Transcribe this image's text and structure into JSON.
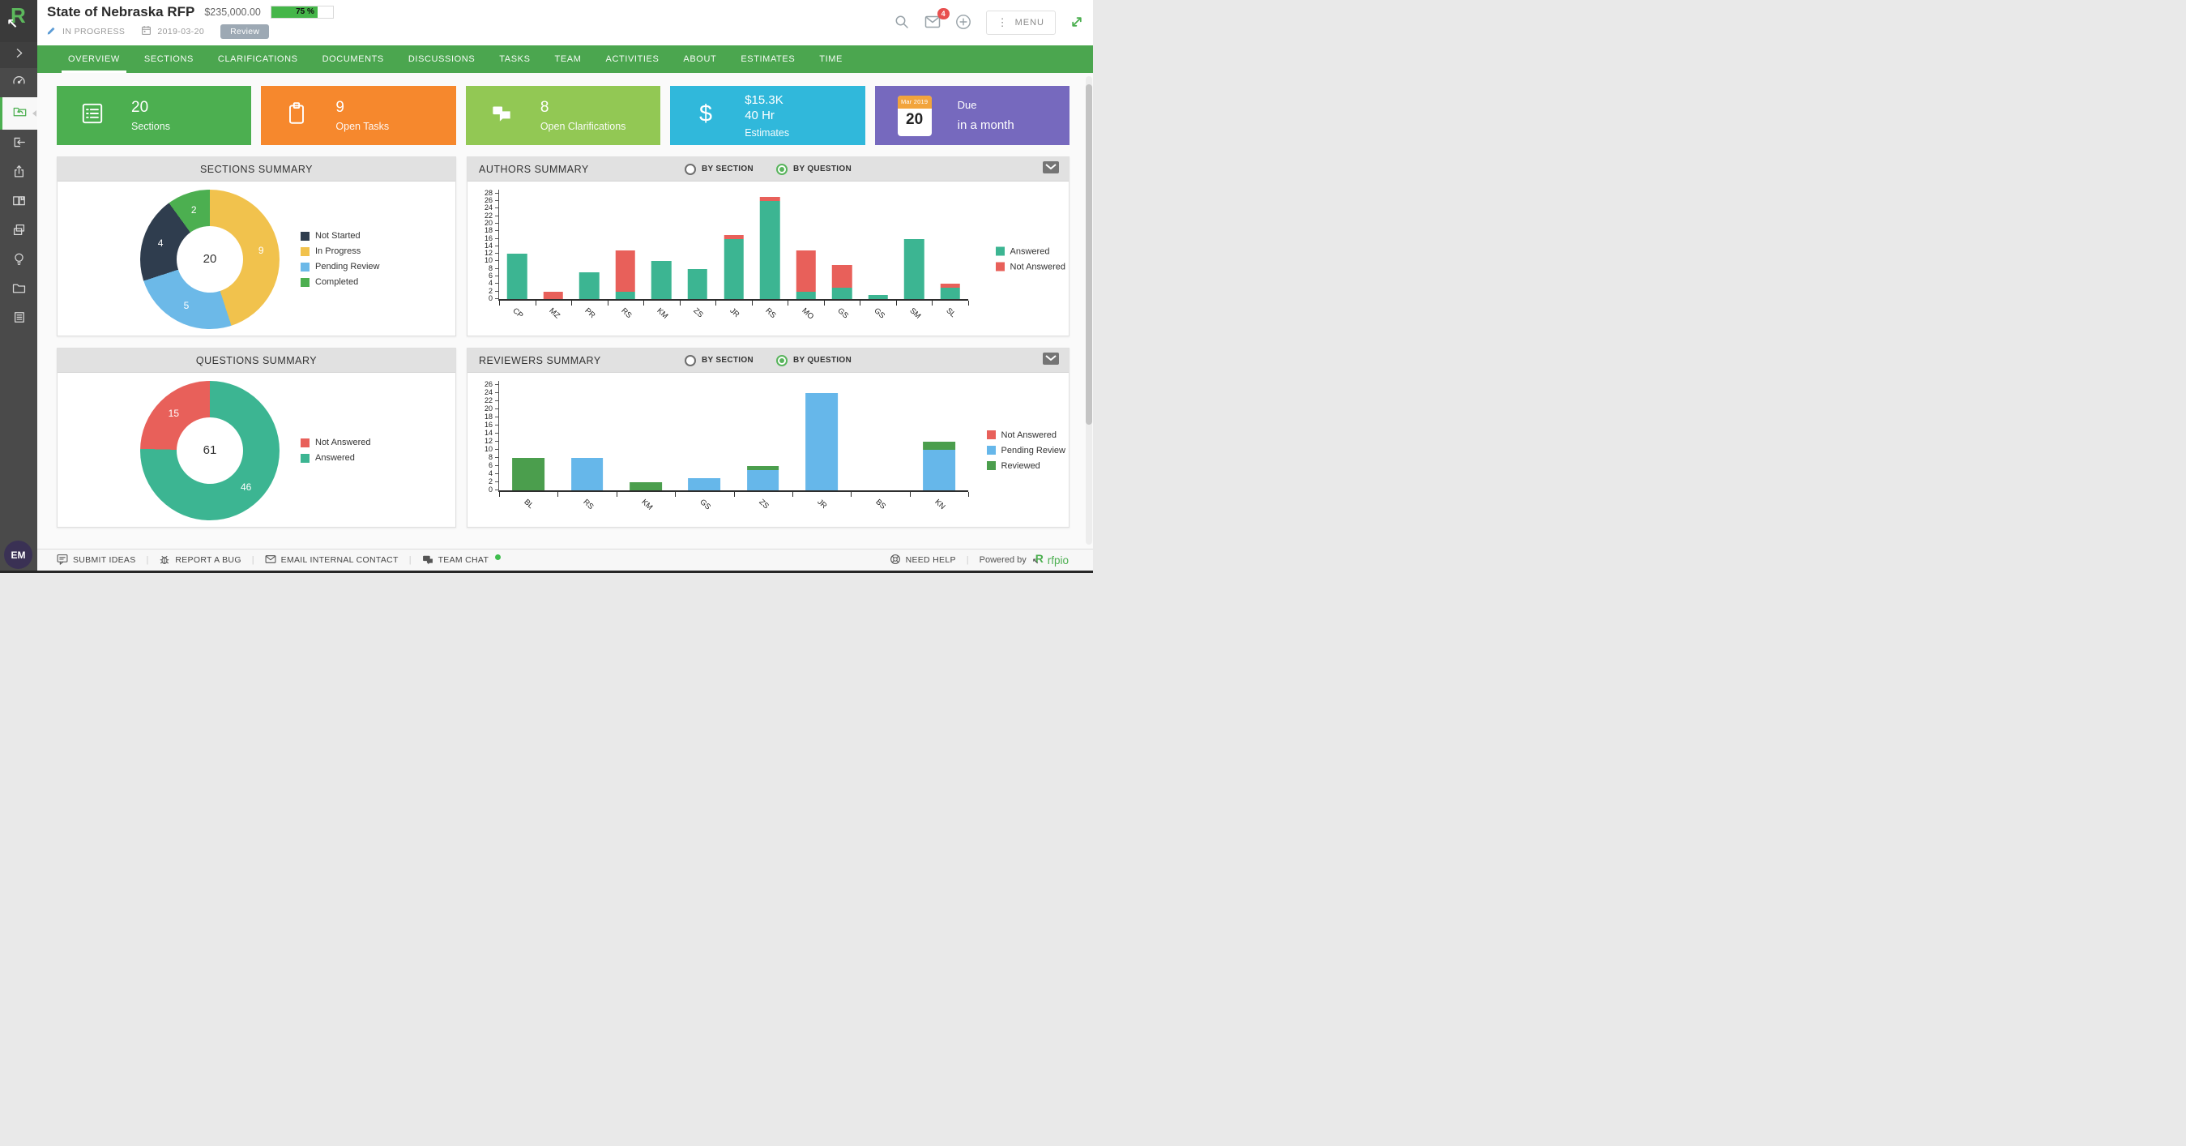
{
  "header": {
    "title": "State of Nebraska RFP",
    "amount": "$235,000.00",
    "progress_percent": 75,
    "progress_label": "75 %",
    "status": "IN PROGRESS",
    "date": "2019-03-20",
    "stage_badge": "Review",
    "mail_badge_count": "4",
    "menu_label": "MENU"
  },
  "nav": {
    "active_tab": "OVERVIEW",
    "tabs": [
      "OVERVIEW",
      "SECTIONS",
      "CLARIFICATIONS",
      "DOCUMENTS",
      "DISCUSSIONS",
      "TASKS",
      "TEAM",
      "ACTIVITIES",
      "ABOUT",
      "ESTIMATES",
      "TIME"
    ]
  },
  "sidebar": {
    "items": [
      {
        "icon": "collapse-chevron-icon",
        "variant": "dark"
      },
      {
        "icon": "dashboard-icon"
      },
      {
        "icon": "projects-icon",
        "active": true
      },
      {
        "icon": "intake-icon"
      },
      {
        "icon": "export-icon"
      },
      {
        "icon": "content-library-icon"
      },
      {
        "icon": "duplicate-icon"
      },
      {
        "icon": "insights-icon"
      },
      {
        "icon": "files-icon"
      },
      {
        "icon": "reports-icon"
      }
    ]
  },
  "stat_cards": [
    {
      "icon": "list-icon",
      "color": "#4CAF50",
      "value": "20",
      "label": "Sections"
    },
    {
      "icon": "clipboard-icon",
      "color": "#F6882D",
      "value": "9",
      "label": "Open Tasks"
    },
    {
      "icon": "chat-bubbles-icon",
      "color": "#92C854",
      "value": "8",
      "label": "Open Clarifications"
    },
    {
      "icon": "dollar-icon",
      "color": "#30B8DB",
      "value": "$15.3K",
      "value2": "40 Hr",
      "label": "Estimates"
    },
    {
      "type": "calendar",
      "color": "#7669BE",
      "calendar_month": "Mar 2019",
      "calendar_day": "20",
      "calendar_header_color": "#F2A43C",
      "line1": "Due",
      "line2": "in a month"
    }
  ],
  "panels": {
    "authors": {
      "radio_options": [
        "BY SECTION",
        "BY QUESTION"
      ],
      "radio_selected": "BY QUESTION"
    },
    "reviewers": {
      "radio_options": [
        "BY SECTION",
        "BY QUESTION"
      ],
      "radio_selected": "BY QUESTION"
    }
  },
  "chart_data": [
    {
      "type": "donut",
      "title": "SECTIONS SUMMARY",
      "total_label": "20",
      "segments": [
        {
          "label": "In Progress",
          "value": 9,
          "color": "#F1C24D"
        },
        {
          "label": "Pending Review",
          "value": 5,
          "color": "#6CB9E8"
        },
        {
          "label": "Not Started",
          "value": 4,
          "color": "#2F3D4E"
        },
        {
          "label": "Completed",
          "value": 2,
          "color": "#4CAF50"
        }
      ],
      "legend": [
        {
          "label": "Not Started",
          "color": "#2F3D4E"
        },
        {
          "label": "In Progress",
          "color": "#F1C24D"
        },
        {
          "label": "Pending Review",
          "color": "#6CB9E8"
        },
        {
          "label": "Completed",
          "color": "#4CAF50"
        }
      ]
    },
    {
      "type": "stacked_bar",
      "title": "AUTHORS SUMMARY",
      "categories": [
        "CP",
        "MZ",
        "PR",
        "RS",
        "KM",
        "ZS",
        "JR",
        "RS",
        "MO",
        "GS",
        "GS",
        "SM",
        "SL"
      ],
      "series": [
        {
          "name": "Answered",
          "color": "#3CB592",
          "values": [
            12,
            0,
            7,
            2,
            10,
            8,
            16,
            26,
            2,
            3,
            1,
            16,
            3
          ]
        },
        {
          "name": "Not Answered",
          "color": "#E8605A",
          "values": [
            0,
            2,
            0,
            11,
            0,
            0,
            1,
            1,
            11,
            6,
            0,
            0,
            1
          ]
        }
      ],
      "legend": [
        {
          "label": "Answered",
          "color": "#3CB592"
        },
        {
          "label": "Not Answered",
          "color": "#E8605A"
        }
      ],
      "y_max": 28,
      "y_step": 2,
      "ylim": [
        0,
        28
      ],
      "grid": false,
      "legend_position": "right"
    },
    {
      "type": "donut",
      "title": "QUESTIONS SUMMARY",
      "total_label": "61",
      "segments": [
        {
          "label": "Answered",
          "value": 46,
          "color": "#3CB592"
        },
        {
          "label": "Not Answered",
          "value": 15,
          "color": "#E8605A"
        }
      ],
      "legend": [
        {
          "label": "Not Answered",
          "color": "#E8605A"
        },
        {
          "label": "Answered",
          "color": "#3CB592"
        }
      ]
    },
    {
      "type": "stacked_bar",
      "title": "REVIEWERS SUMMARY",
      "categories": [
        "BL",
        "RS",
        "KM",
        "GS",
        "ZS",
        "JR",
        "BS",
        "KN"
      ],
      "series": [
        {
          "name": "Pending Review",
          "color": "#66B7EA",
          "values": [
            0,
            8,
            0,
            3,
            5,
            24,
            0,
            10
          ]
        },
        {
          "name": "Reviewed",
          "color": "#4B9E4D",
          "values": [
            8,
            0,
            2,
            0,
            1,
            0,
            0,
            2
          ]
        }
      ],
      "legend": [
        {
          "label": "Not Answered",
          "color": "#E8605A"
        },
        {
          "label": "Pending Review",
          "color": "#66B7EA"
        },
        {
          "label": "Reviewed",
          "color": "#4B9E4D"
        }
      ],
      "y_max": 26,
      "y_step": 2,
      "ylim": [
        0,
        26
      ],
      "grid": false,
      "legend_position": "right"
    }
  ],
  "footer": {
    "avatar": "EM",
    "links": [
      {
        "icon": "speech-bubble-icon",
        "label": "SUBMIT IDEAS"
      },
      {
        "icon": "bug-icon",
        "label": "REPORT A BUG"
      },
      {
        "icon": "envelope-icon",
        "label": "EMAIL INTERNAL CONTACT"
      },
      {
        "icon": "team-chat-icon",
        "label": "TEAM CHAT",
        "icon_color": "#43A047",
        "status_dot": true
      }
    ],
    "help": {
      "icon": "life-ring-icon",
      "label": "NEED HELP"
    },
    "powered_by": "Powered by",
    "brand": "rfpio"
  }
}
